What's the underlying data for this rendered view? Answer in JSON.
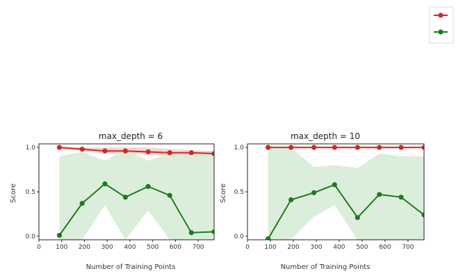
{
  "chart_data": [
    {
      "type": "line",
      "title": "max_depth = 6",
      "xlabel": "Number of Training Points",
      "ylabel": "Score",
      "xlim": [
        0,
        770
      ],
      "ylim": [
        -0.04,
        1.04
      ],
      "xticks": [
        0,
        100,
        200,
        300,
        400,
        500,
        600,
        700
      ],
      "yticks": [
        0.0,
        0.5,
        1.0
      ],
      "ytick_labels": [
        "0.0",
        "0.5",
        "1.0"
      ],
      "x": [
        90,
        190,
        290,
        380,
        480,
        575,
        670,
        770
      ],
      "series": [
        {
          "color": "#cc2b22",
          "band_color": "#f2c7c3",
          "values": [
            1.0,
            0.98,
            0.96,
            0.96,
            0.95,
            0.94,
            0.94,
            0.93
          ],
          "band_low": [
            0.99,
            0.96,
            0.93,
            0.93,
            0.92,
            0.91,
            0.91,
            0.9
          ],
          "band_high": [
            1.0,
            1.0,
            1.0,
            1.0,
            1.0,
            0.98,
            0.97,
            0.96
          ]
        },
        {
          "color": "#1f7a1f",
          "band_color": "#cfe8cf",
          "values": [
            0.01,
            0.37,
            0.59,
            0.44,
            0.56,
            0.46,
            0.04,
            0.05
          ],
          "band_low": [
            -0.04,
            -0.04,
            0.35,
            -0.04,
            0.29,
            -0.04,
            -0.04,
            -0.04
          ],
          "band_high": [
            0.9,
            0.95,
            0.85,
            0.98,
            0.85,
            0.93,
            0.9,
            0.97
          ]
        }
      ]
    },
    {
      "type": "line",
      "title": "max_depth = 10",
      "xlabel": "Number of Training Points",
      "ylabel": "Score",
      "xlim": [
        0,
        770
      ],
      "ylim": [
        -0.04,
        1.04
      ],
      "xticks": [
        0,
        100,
        200,
        300,
        400,
        500,
        600,
        700
      ],
      "yticks": [
        0.0,
        0.5,
        1.0
      ],
      "ytick_labels": [
        "0.0",
        "0.5",
        "1.0"
      ],
      "x": [
        90,
        190,
        290,
        380,
        480,
        575,
        670,
        770
      ],
      "series": [
        {
          "color": "#cc2b22",
          "band_color": "#f2c7c3",
          "values": [
            1.0,
            1.0,
            1.0,
            1.0,
            1.0,
            1.0,
            1.0,
            1.0
          ],
          "band_low": [
            0.99,
            0.99,
            0.99,
            0.99,
            0.99,
            0.99,
            0.99,
            0.99
          ],
          "band_high": [
            1.0,
            1.0,
            1.0,
            1.0,
            1.0,
            1.0,
            1.0,
            1.0
          ]
        },
        {
          "color": "#1f7a1f",
          "band_color": "#cfe8cf",
          "values": [
            -0.03,
            0.41,
            0.49,
            0.58,
            0.21,
            0.47,
            0.44,
            0.24
          ],
          "band_low": [
            -0.04,
            -0.04,
            0.22,
            0.35,
            -0.04,
            -0.04,
            -0.04,
            -0.04
          ],
          "band_high": [
            1.0,
            1.0,
            0.78,
            0.8,
            0.77,
            0.93,
            0.9,
            0.9
          ]
        }
      ]
    }
  ],
  "legend": {
    "placement": "top-right",
    "entries": [
      {
        "color": "#cc2b22"
      },
      {
        "color": "#1f7a1f"
      }
    ]
  }
}
